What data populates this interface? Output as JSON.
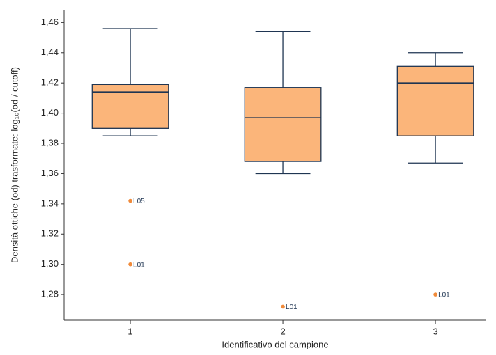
{
  "chart_data": {
    "type": "box",
    "x_label": "Identificativo del campione",
    "y_label": "Densità ottiche (od) trasformate: log₁₀(od / cutoff)",
    "xlim": [
      0.566,
      3.333
    ],
    "xticks": [
      1,
      2,
      3
    ],
    "ylim": [
      1.263,
      1.468
    ],
    "yticks": [
      {
        "value": 1.28,
        "label": "1,28"
      },
      {
        "value": 1.3,
        "label": "1,30"
      },
      {
        "value": 1.32,
        "label": "1,32"
      },
      {
        "value": 1.34,
        "label": "1,34"
      },
      {
        "value": 1.36,
        "label": "1,36"
      },
      {
        "value": 1.38,
        "label": "1,38"
      },
      {
        "value": 1.4,
        "label": "1,40"
      },
      {
        "value": 1.42,
        "label": "1,42"
      },
      {
        "value": 1.44,
        "label": "1,44"
      },
      {
        "value": 1.46,
        "label": "1,46"
      }
    ],
    "box_color": "#fbb57a",
    "line_color": "#1f3552",
    "outlier_color": "#f08a3a",
    "boxes": [
      {
        "x": 1,
        "whisker_low": 1.385,
        "q1": 1.39,
        "median": 1.414,
        "q3": 1.419,
        "whisker_high": 1.456,
        "outliers": [
          {
            "value": 1.342,
            "label": "L05"
          },
          {
            "value": 1.3,
            "label": "L01"
          }
        ]
      },
      {
        "x": 2,
        "whisker_low": 1.36,
        "q1": 1.368,
        "median": 1.397,
        "q3": 1.417,
        "whisker_high": 1.454,
        "outliers": [
          {
            "value": 1.272,
            "label": "L01"
          }
        ]
      },
      {
        "x": 3,
        "whisker_low": 1.367,
        "q1": 1.385,
        "median": 1.42,
        "q3": 1.431,
        "whisker_high": 1.44,
        "outliers": [
          {
            "value": 1.28,
            "label": "L01"
          }
        ]
      }
    ]
  }
}
